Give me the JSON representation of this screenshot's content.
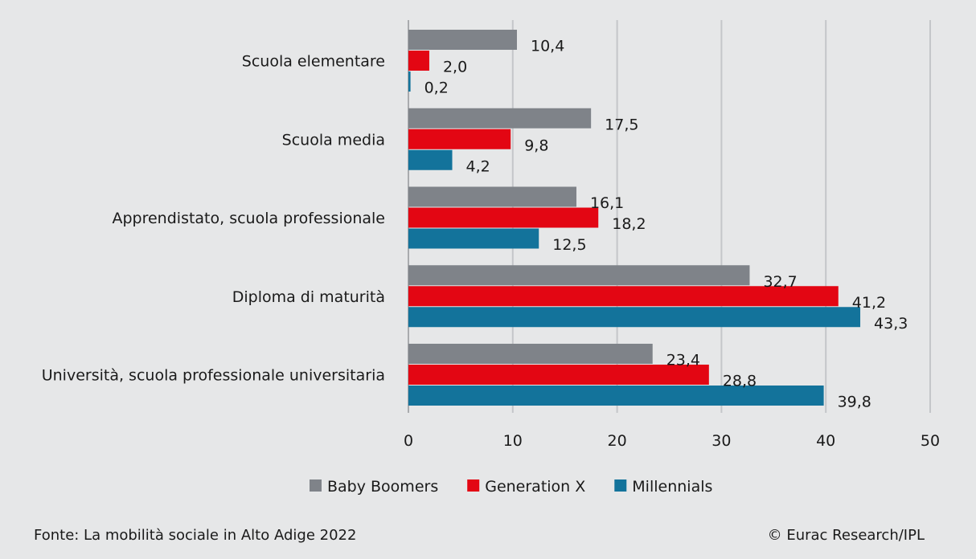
{
  "chart_data": {
    "type": "bar",
    "orientation": "horizontal",
    "categories": [
      "Scuola elementare",
      "Scuola media",
      "Apprendistato, scuola professionale",
      "Diploma di maturità",
      "Università, scuola professionale universitaria"
    ],
    "series": [
      {
        "name": "Baby Boomers",
        "color": "#7f8389",
        "values": [
          10.4,
          17.5,
          16.1,
          32.7,
          23.4
        ],
        "labels": [
          "10,4",
          "17,5",
          "16,1",
          "32,7",
          "23,4"
        ]
      },
      {
        "name": "Generation X",
        "color": "#e30613",
        "values": [
          2.0,
          9.8,
          18.2,
          41.2,
          28.8
        ],
        "labels": [
          "2,0",
          "9,8",
          "18,2",
          "41,2",
          "28,8"
        ]
      },
      {
        "name": "Millennials",
        "color": "#13739b",
        "values": [
          0.2,
          4.2,
          12.5,
          43.3,
          39.8
        ],
        "labels": [
          "0,2",
          "4,2",
          "12,5",
          "43,3",
          "39,8"
        ]
      }
    ],
    "xlim": [
      0,
      50
    ],
    "xticks": [
      0,
      10,
      20,
      30,
      40,
      50
    ],
    "grid": true,
    "legend_position": "bottom"
  },
  "footer": {
    "source": "Fonte: La mobilità sociale in Alto Adige 2022",
    "copyright": "© Eurac Research/IPL"
  }
}
